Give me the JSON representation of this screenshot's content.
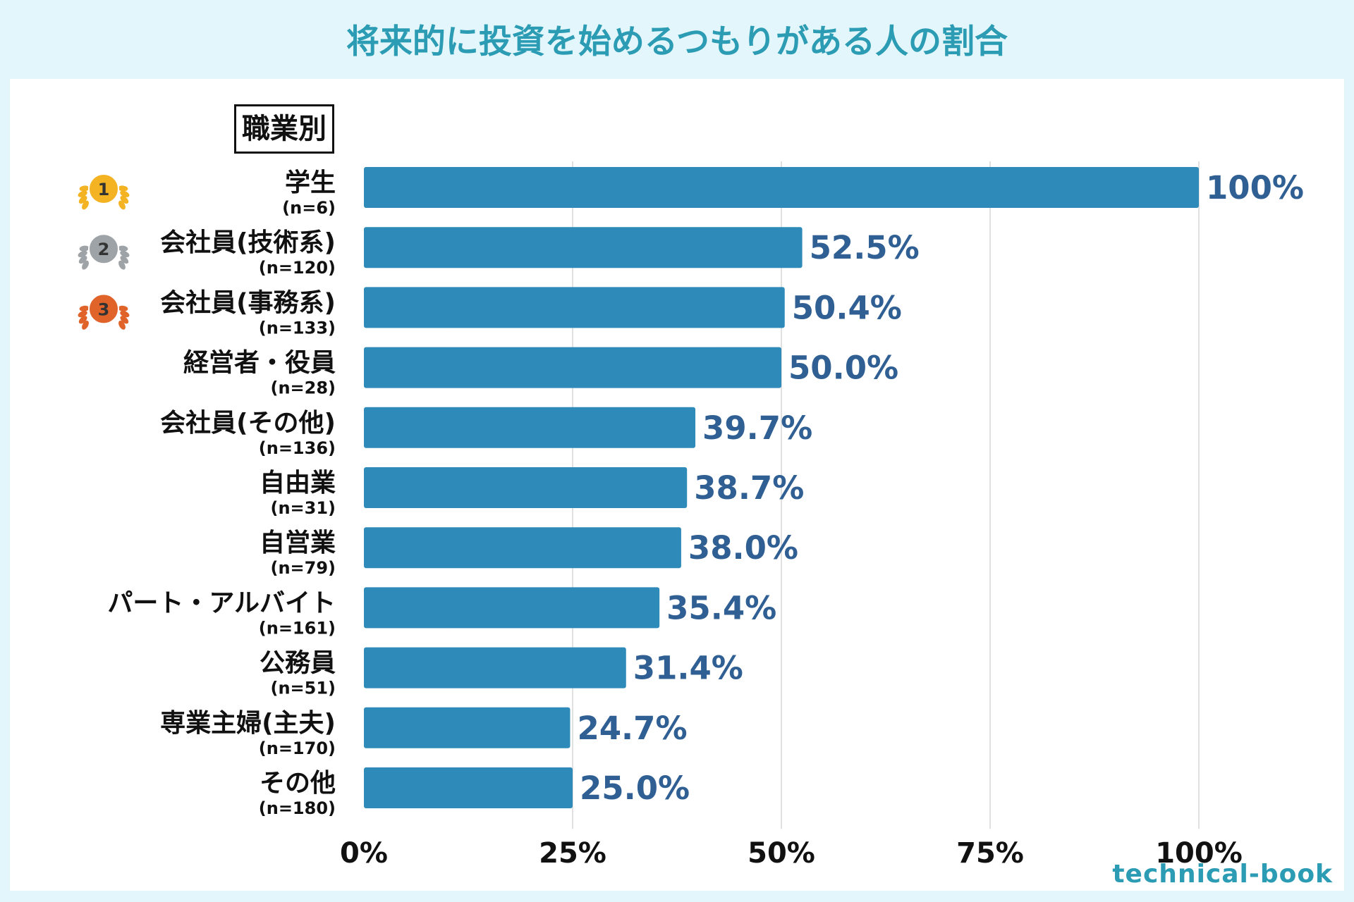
{
  "page": {
    "title": "将来的に投資を始めるつもりがある人の割合",
    "brand": "technical-book"
  },
  "colors": {
    "background": "#e2f6fb",
    "panel": "#ffffff",
    "title": "#2b9cb3",
    "bar": "#2e8bb9",
    "value_label": "#2f5f93",
    "grid": "#d7d7d7",
    "gold": "#f3b323",
    "silver": "#9ea3a7",
    "bronze": "#e0632a"
  },
  "chart_data": {
    "type": "bar",
    "orientation": "horizontal",
    "title": "将来的に投資を始めるつもりがある人の割合",
    "section_label": "職業別",
    "categories": [
      "学生",
      "会社員(技術系)",
      "会社員(事務系)",
      "経営者・役員",
      "会社員(その他)",
      "自由業",
      "自営業",
      "パート・アルバイト",
      "公務員",
      "専業主婦(主夫)",
      "その他"
    ],
    "sample_sizes": [
      "(n=6)",
      "(n=120)",
      "(n=133)",
      "(n=28)",
      "(n=136)",
      "(n=31)",
      "(n=79)",
      "(n=161)",
      "(n=51)",
      "(n=170)",
      "(n=180)"
    ],
    "values": [
      100,
      52.5,
      50.4,
      50.0,
      39.7,
      38.7,
      38.0,
      35.4,
      31.4,
      24.7,
      25.0
    ],
    "value_labels": [
      "100%",
      "52.5%",
      "50.4%",
      "50.0%",
      "39.7%",
      "38.7%",
      "38.0%",
      "35.4%",
      "31.4%",
      "24.7%",
      "25.0%"
    ],
    "xlim": [
      0,
      100
    ],
    "xticks": [
      0,
      25,
      50,
      75,
      100
    ],
    "xtick_labels": [
      "0%",
      "25%",
      "50%",
      "75%",
      "100%"
    ],
    "grid": "vertical",
    "legend": "none",
    "rank_badges": [
      {
        "rank": "1",
        "category": "学生",
        "medal": "gold",
        "icon": "gold-medal-icon"
      },
      {
        "rank": "2",
        "category": "会社員(技術系)",
        "medal": "silver",
        "icon": "silver-medal-icon"
      },
      {
        "rank": "3",
        "category": "会社員(事務系)",
        "medal": "bronze",
        "icon": "bronze-medal-icon"
      }
    ]
  }
}
